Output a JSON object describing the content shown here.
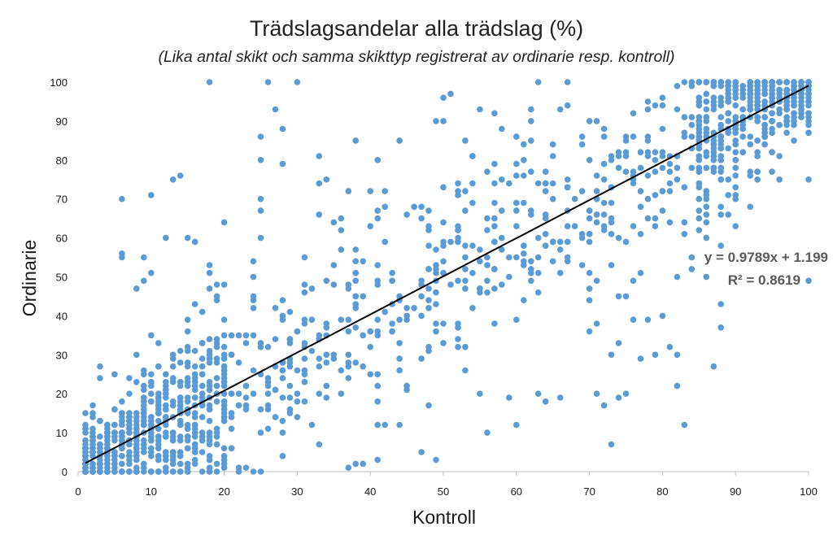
{
  "chart_data": {
    "type": "scatter",
    "title": "Trädslagsandelar alla trädslag (%)",
    "subtitle": "(Lika antal skikt och samma skikttyp registrerat av ordinarie resp. kontroll)",
    "xlabel": "Kontroll",
    "ylabel": "Ordinarie",
    "xlim": [
      0,
      100
    ],
    "ylim": [
      0,
      100
    ],
    "x_ticks": [
      0,
      10,
      20,
      30,
      40,
      50,
      60,
      70,
      80,
      90,
      100
    ],
    "y_ticks": [
      0,
      10,
      20,
      30,
      40,
      50,
      60,
      70,
      80,
      90,
      100
    ],
    "grid": false,
    "point_color": "#5b9bd5",
    "trendline": {
      "color": "#000000",
      "slope": 0.9789,
      "intercept": 1.199,
      "x_range": [
        1,
        100
      ],
      "equation_label": "y = 0.9789x + 1.199",
      "r2_label": "R² = 0.8619"
    },
    "generated_cloud": {
      "note": "dense body of points approximated from the trend; outliers listed explicitly",
      "count": 1500,
      "seed": 7
    },
    "points": [
      [
        18,
        100
      ],
      [
        26,
        100
      ],
      [
        30,
        100
      ],
      [
        63,
        100
      ],
      [
        67,
        100
      ],
      [
        83,
        100
      ],
      [
        84,
        100
      ],
      [
        6,
        70
      ],
      [
        10,
        71
      ],
      [
        13,
        75
      ],
      [
        14,
        76
      ],
      [
        27,
        93
      ],
      [
        28,
        88
      ],
      [
        25,
        86
      ],
      [
        25,
        80
      ],
      [
        28,
        79
      ],
      [
        25,
        70
      ],
      [
        25,
        67
      ],
      [
        20,
        64
      ],
      [
        44,
        85
      ],
      [
        38,
        85
      ],
      [
        41,
        80
      ],
      [
        50,
        96
      ],
      [
        51,
        97
      ],
      [
        49,
        90
      ],
      [
        50,
        90
      ],
      [
        53,
        85
      ],
      [
        44,
        12
      ],
      [
        41,
        12
      ],
      [
        42,
        12
      ],
      [
        38,
        2
      ],
      [
        39,
        2
      ],
      [
        41,
        3
      ],
      [
        47,
        5
      ],
      [
        49,
        3
      ],
      [
        37,
        1
      ],
      [
        56,
        10
      ],
      [
        60,
        12
      ],
      [
        59,
        19
      ],
      [
        63,
        20
      ],
      [
        64,
        18
      ],
      [
        66,
        19
      ],
      [
        71,
        20
      ],
      [
        72,
        17
      ],
      [
        73,
        7
      ],
      [
        74,
        19
      ],
      [
        75,
        20
      ],
      [
        77,
        29
      ],
      [
        73,
        30
      ],
      [
        74,
        33
      ],
      [
        79,
        30
      ],
      [
        81,
        32
      ],
      [
        82,
        22
      ],
      [
        82,
        30
      ],
      [
        83,
        12
      ],
      [
        87,
        27
      ],
      [
        88,
        37
      ],
      [
        88,
        43
      ],
      [
        88,
        58
      ],
      [
        90,
        63
      ],
      [
        93,
        75
      ],
      [
        96,
        75
      ],
      [
        100,
        75
      ],
      [
        100,
        49
      ],
      [
        100,
        87
      ],
      [
        100,
        89
      ],
      [
        99,
        94
      ],
      [
        95,
        100
      ],
      [
        92,
        100
      ],
      [
        97,
        100
      ],
      [
        98,
        100
      ],
      [
        85,
        96
      ],
      [
        86,
        95
      ],
      [
        80,
        94
      ],
      [
        78,
        93
      ],
      [
        76,
        92
      ],
      [
        70,
        90
      ],
      [
        66,
        93
      ],
      [
        55,
        93
      ],
      [
        57,
        92
      ],
      [
        54,
        81
      ],
      [
        60,
        86
      ],
      [
        62,
        90
      ],
      [
        58,
        88
      ],
      [
        86,
        50
      ],
      [
        84,
        55
      ],
      [
        82,
        50
      ],
      [
        80,
        40
      ],
      [
        83,
        61
      ],
      [
        84,
        55
      ],
      [
        85,
        67
      ],
      [
        86,
        70
      ],
      [
        90,
        70
      ],
      [
        92,
        68
      ],
      [
        76,
        49
      ],
      [
        70,
        36
      ],
      [
        71,
        38
      ],
      [
        76,
        39
      ],
      [
        78,
        39
      ],
      [
        70,
        44
      ],
      [
        75,
        45
      ],
      [
        1,
        15
      ],
      [
        2,
        17
      ],
      [
        3,
        27
      ],
      [
        3,
        24
      ],
      [
        5,
        25
      ],
      [
        2,
        10
      ],
      [
        1,
        5
      ],
      [
        1,
        0
      ],
      [
        2,
        0
      ],
      [
        4,
        0
      ],
      [
        7,
        0
      ],
      [
        10,
        0
      ],
      [
        12,
        0
      ],
      [
        15,
        0
      ],
      [
        18,
        1
      ],
      [
        22,
        1
      ],
      [
        25,
        0
      ],
      [
        6,
        56
      ],
      [
        6,
        55
      ],
      [
        9,
        55
      ],
      [
        8,
        47
      ],
      [
        9,
        49
      ],
      [
        10,
        51
      ],
      [
        12,
        60
      ],
      [
        15,
        60
      ],
      [
        16,
        59
      ],
      [
        18,
        53
      ],
      [
        18,
        51
      ],
      [
        19,
        48
      ],
      [
        19,
        45
      ],
      [
        24,
        45
      ],
      [
        24,
        50
      ],
      [
        25,
        60
      ],
      [
        24,
        54
      ],
      [
        31,
        55
      ],
      [
        33,
        66
      ],
      [
        33,
        81
      ],
      [
        34,
        75
      ],
      [
        33,
        74
      ],
      [
        37,
        72
      ],
      [
        40,
        72
      ],
      [
        42,
        68
      ],
      [
        42,
        72
      ],
      [
        45,
        66
      ],
      [
        46,
        68
      ],
      [
        48,
        67
      ],
      [
        35,
        64
      ],
      [
        36,
        62
      ],
      [
        36,
        65
      ]
    ]
  }
}
